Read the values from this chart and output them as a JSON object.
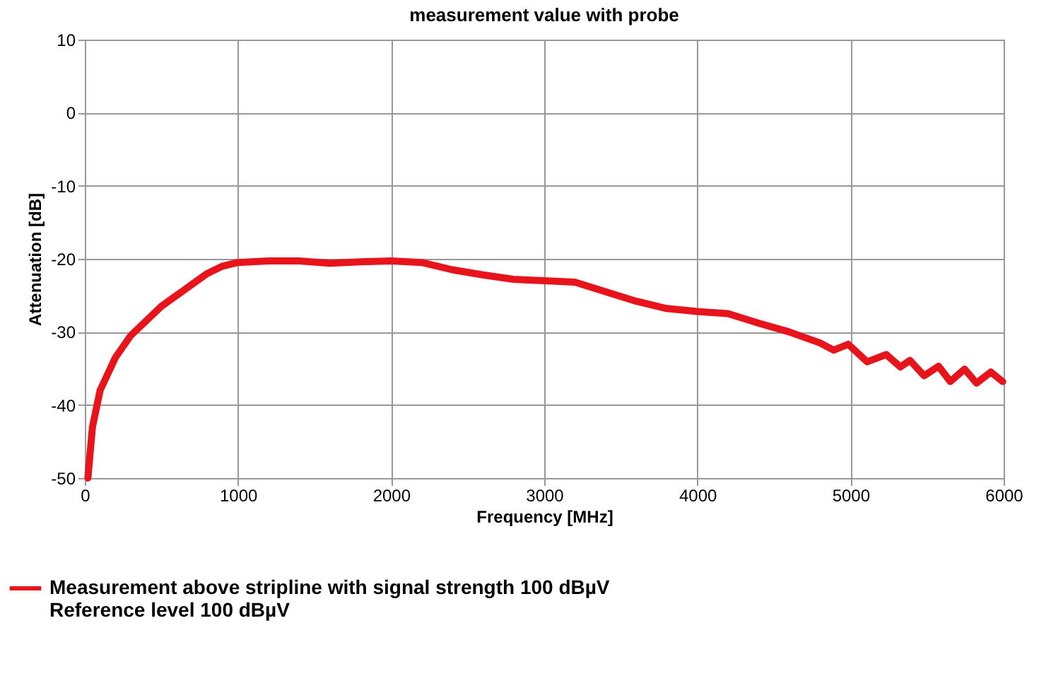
{
  "chart_data": {
    "type": "line",
    "title": "measurement value with probe",
    "xlabel": "Frequency [MHz]",
    "ylabel": "Attenuation [dB]",
    "series": [
      {
        "name": "Measurement above stripline with signal strength 100 dBµV\nReference level 100 dBµV",
        "color": "#e8141b",
        "x": [
          20,
          50,
          100,
          200,
          300,
          400,
          500,
          600,
          700,
          800,
          900,
          1000,
          1200,
          1400,
          1600,
          1800,
          2000,
          2200,
          2400,
          2600,
          2800,
          3000,
          3200,
          3400,
          3600,
          3800,
          4000,
          4200,
          4400,
          4600,
          4800,
          4890,
          4985,
          5109,
          5233,
          5326,
          5388,
          5481,
          5575,
          5652,
          5745,
          5823,
          5916,
          5994
        ],
        "values": [
          -50,
          -43,
          -38,
          -33.5,
          -30.5,
          -28.5,
          -26.5,
          -25,
          -23.5,
          -22,
          -21,
          -20.5,
          -20.3,
          -20.3,
          -20.6,
          -20.4,
          -20.3,
          -20.5,
          -21.5,
          -22.2,
          -22.8,
          -23,
          -23.2,
          -24.5,
          -25.8,
          -26.8,
          -27.2,
          -27.5,
          -28.8,
          -30,
          -31.5,
          -32.5,
          -31.7,
          -34.1,
          -33.1,
          -34.8,
          -33.9,
          -36,
          -34.7,
          -36.8,
          -35.1,
          -37,
          -35.5,
          -36.8
        ]
      }
    ],
    "xlim": [
      0,
      6000
    ],
    "xticks": [
      0,
      1000,
      2000,
      3000,
      4000,
      5000,
      6000
    ],
    "ylim": [
      -50,
      10
    ],
    "yticks": [
      -50,
      -40,
      -30,
      -20,
      -10,
      0,
      10
    ],
    "grid": true,
    "legend": "bottom left",
    "marker": "none",
    "line_style": "solid"
  }
}
